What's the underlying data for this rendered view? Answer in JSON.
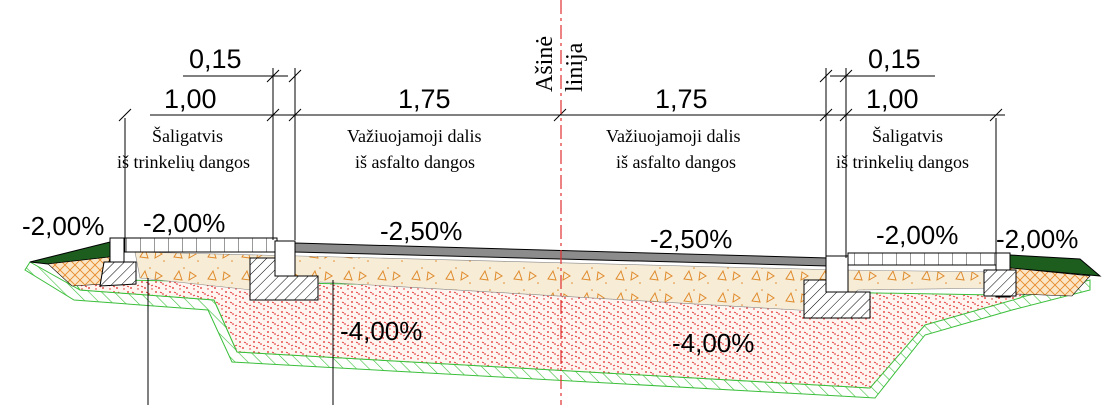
{
  "axis": {
    "label_1": "Ašinė",
    "label_2": "linija"
  },
  "dimensions": {
    "left_curb": "0,15",
    "left_sidewalk": "1,00",
    "left_lane": "1,75",
    "right_lane": "1,75",
    "right_curb": "0,15",
    "right_sidewalk": "1,00"
  },
  "zones": {
    "left_sidewalk": [
      "Šaligatvis",
      "iš trinkelių dangos"
    ],
    "left_lane": [
      "Važiuojamoji dalis",
      "iš asfalto dangos"
    ],
    "right_lane": [
      "Važiuojamoji dalis",
      "iš asfalto dangos"
    ],
    "right_sidewalk": [
      "Šaligatvis",
      "iš trinkelių dangos"
    ]
  },
  "slopes": {
    "left_outer": "-2,00%",
    "left_sidewalk": "-2,00%",
    "left_lane": "-2,50%",
    "right_lane": "-2,50%",
    "right_sidewalk": "-2,00%",
    "right_outer": "-2,00%",
    "subgrade_left": "-4,00%",
    "subgrade_right": "-4,00%"
  },
  "colors": {
    "grass": "#1d5e1f",
    "ground": "#3bbf3b",
    "subbase_dots": "#e02020",
    "gravel": "#f3e4c8",
    "asphalt": "#8c8c8c",
    "sand": "#e88a2a",
    "axis_line": "#e03030"
  }
}
